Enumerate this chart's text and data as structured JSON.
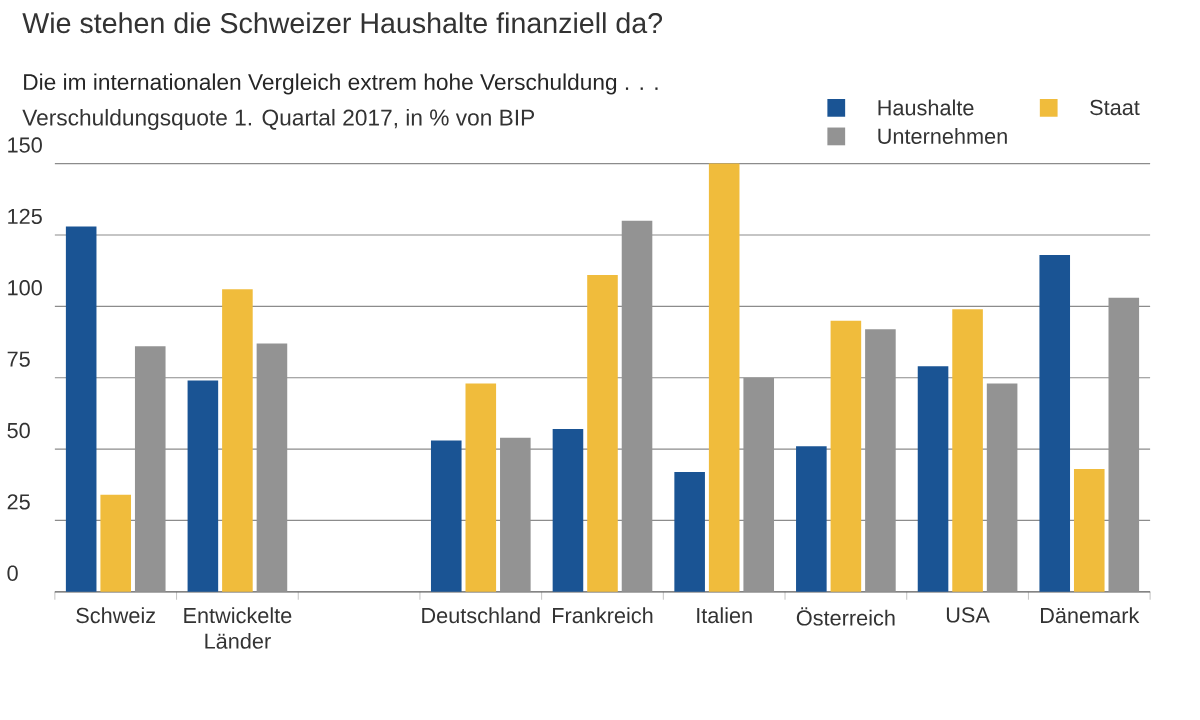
{
  "chart_data": {
    "type": "bar",
    "title": "Wie stehen die Schweizer Haushalte finanziell da?",
    "subtitle": "Die im internationalen Vergleich extrem hohe Verschuldung . . .",
    "ylabel": "Verschuldungsquote 1. Quartal 2017, in % von BIP",
    "categories": [
      "Schweiz",
      "Entwickelte Länder",
      null,
      "Deutschland",
      "Frankreich",
      "Italien",
      "Österreich",
      "USA",
      "Dänemark"
    ],
    "series": [
      {
        "name": "Haushalte",
        "color": "#1a5494",
        "values": [
          128,
          74,
          null,
          53,
          57,
          42,
          51,
          79,
          118
        ]
      },
      {
        "name": "Staat",
        "color": "#f0bc3c",
        "values": [
          34,
          106,
          null,
          73,
          111,
          150,
          95,
          99,
          43
        ]
      },
      {
        "name": "Unternehmen",
        "color": "#939393",
        "values": [
          86,
          87,
          null,
          54,
          130,
          75,
          92,
          73,
          103
        ]
      }
    ],
    "ylim": [
      0,
      150
    ],
    "yticks": [
      0,
      25,
      50,
      75,
      100,
      125,
      150
    ],
    "grid": "y",
    "legend": "top right"
  }
}
